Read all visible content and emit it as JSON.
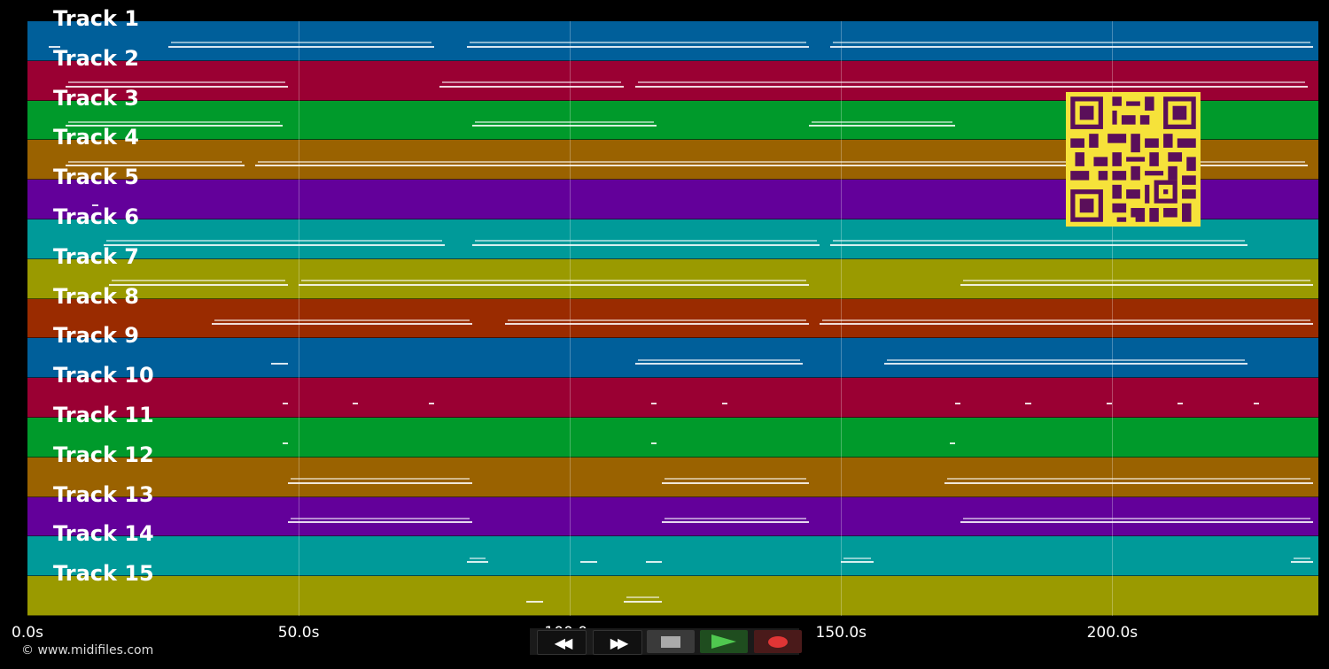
{
  "tracks": [
    {
      "label": "Track 1",
      "color": "#005f9a"
    },
    {
      "label": "Track 2",
      "color": "#9a0033"
    },
    {
      "label": "Track 3",
      "color": "#009a2b"
    },
    {
      "label": "Track 4",
      "color": "#9a6200"
    },
    {
      "label": "Track 5",
      "color": "#63009a"
    },
    {
      "label": "Track 6",
      "color": "#009a99"
    },
    {
      "label": "Track 7",
      "color": "#9a9a00"
    },
    {
      "label": "Track 8",
      "color": "#9a2b00"
    },
    {
      "label": "Track 9",
      "color": "#005f9a"
    },
    {
      "label": "Track 10",
      "color": "#9a0033"
    },
    {
      "label": "Track 11",
      "color": "#009a2b"
    },
    {
      "label": "Track 12",
      "color": "#9a6200"
    },
    {
      "label": "Track 13",
      "color": "#63009a"
    },
    {
      "label": "Track 14",
      "color": "#009a99"
    },
    {
      "label": "Track 15",
      "color": "#9a9a00"
    }
  ],
  "axis": {
    "ticks": [
      "0.0s",
      "50.0s",
      "100.0s",
      "150.0s",
      "200.0s"
    ],
    "tick_values": [
      0,
      50,
      100,
      150,
      200
    ],
    "max_seconds": 238
  },
  "copyright": "© www.midifiles.com",
  "controls": {
    "rewind_icon": "rewind-icon",
    "forward_icon": "fast-forward-icon",
    "stop_icon": "stop-icon",
    "play_icon": "play-icon",
    "record_icon": "record-icon"
  },
  "qr_icon": "qr-code-icon",
  "notes": [
    [
      [
        4,
        6
      ],
      [
        26,
        75
      ],
      [
        81,
        144
      ],
      [
        148,
        237
      ]
    ],
    [
      [
        7,
        48
      ],
      [
        76,
        110
      ],
      [
        112,
        236
      ]
    ],
    [
      [
        7,
        47
      ],
      [
        82,
        116
      ],
      [
        144,
        171
      ]
    ],
    [
      [
        7,
        40
      ],
      [
        42,
        236
      ]
    ],
    [
      [
        12,
        13
      ]
    ],
    [
      [
        14,
        77
      ],
      [
        82,
        146
      ],
      [
        148,
        225
      ]
    ],
    [
      [
        15,
        48
      ],
      [
        50,
        144
      ],
      [
        172,
        237
      ]
    ],
    [
      [
        34,
        82
      ],
      [
        88,
        144
      ],
      [
        146,
        237
      ]
    ],
    [
      [
        45,
        48
      ],
      [
        112,
        143
      ],
      [
        158,
        225
      ]
    ],
    [
      [
        47,
        48
      ],
      [
        60,
        61
      ],
      [
        74,
        75
      ],
      [
        115,
        116
      ],
      [
        128,
        129
      ],
      [
        171,
        172
      ],
      [
        184,
        185
      ],
      [
        199,
        200
      ],
      [
        212,
        213
      ],
      [
        226,
        227
      ]
    ],
    [
      [
        47,
        48
      ],
      [
        115,
        116
      ],
      [
        170,
        171
      ]
    ],
    [
      [
        48,
        82
      ],
      [
        117,
        144
      ],
      [
        169,
        237
      ]
    ],
    [
      [
        48,
        82
      ],
      [
        117,
        144
      ],
      [
        172,
        237
      ]
    ],
    [
      [
        81,
        85
      ],
      [
        102,
        105
      ],
      [
        114,
        117
      ],
      [
        150,
        156
      ],
      [
        233,
        237
      ]
    ],
    [
      [
        92,
        95
      ],
      [
        110,
        117
      ]
    ]
  ]
}
